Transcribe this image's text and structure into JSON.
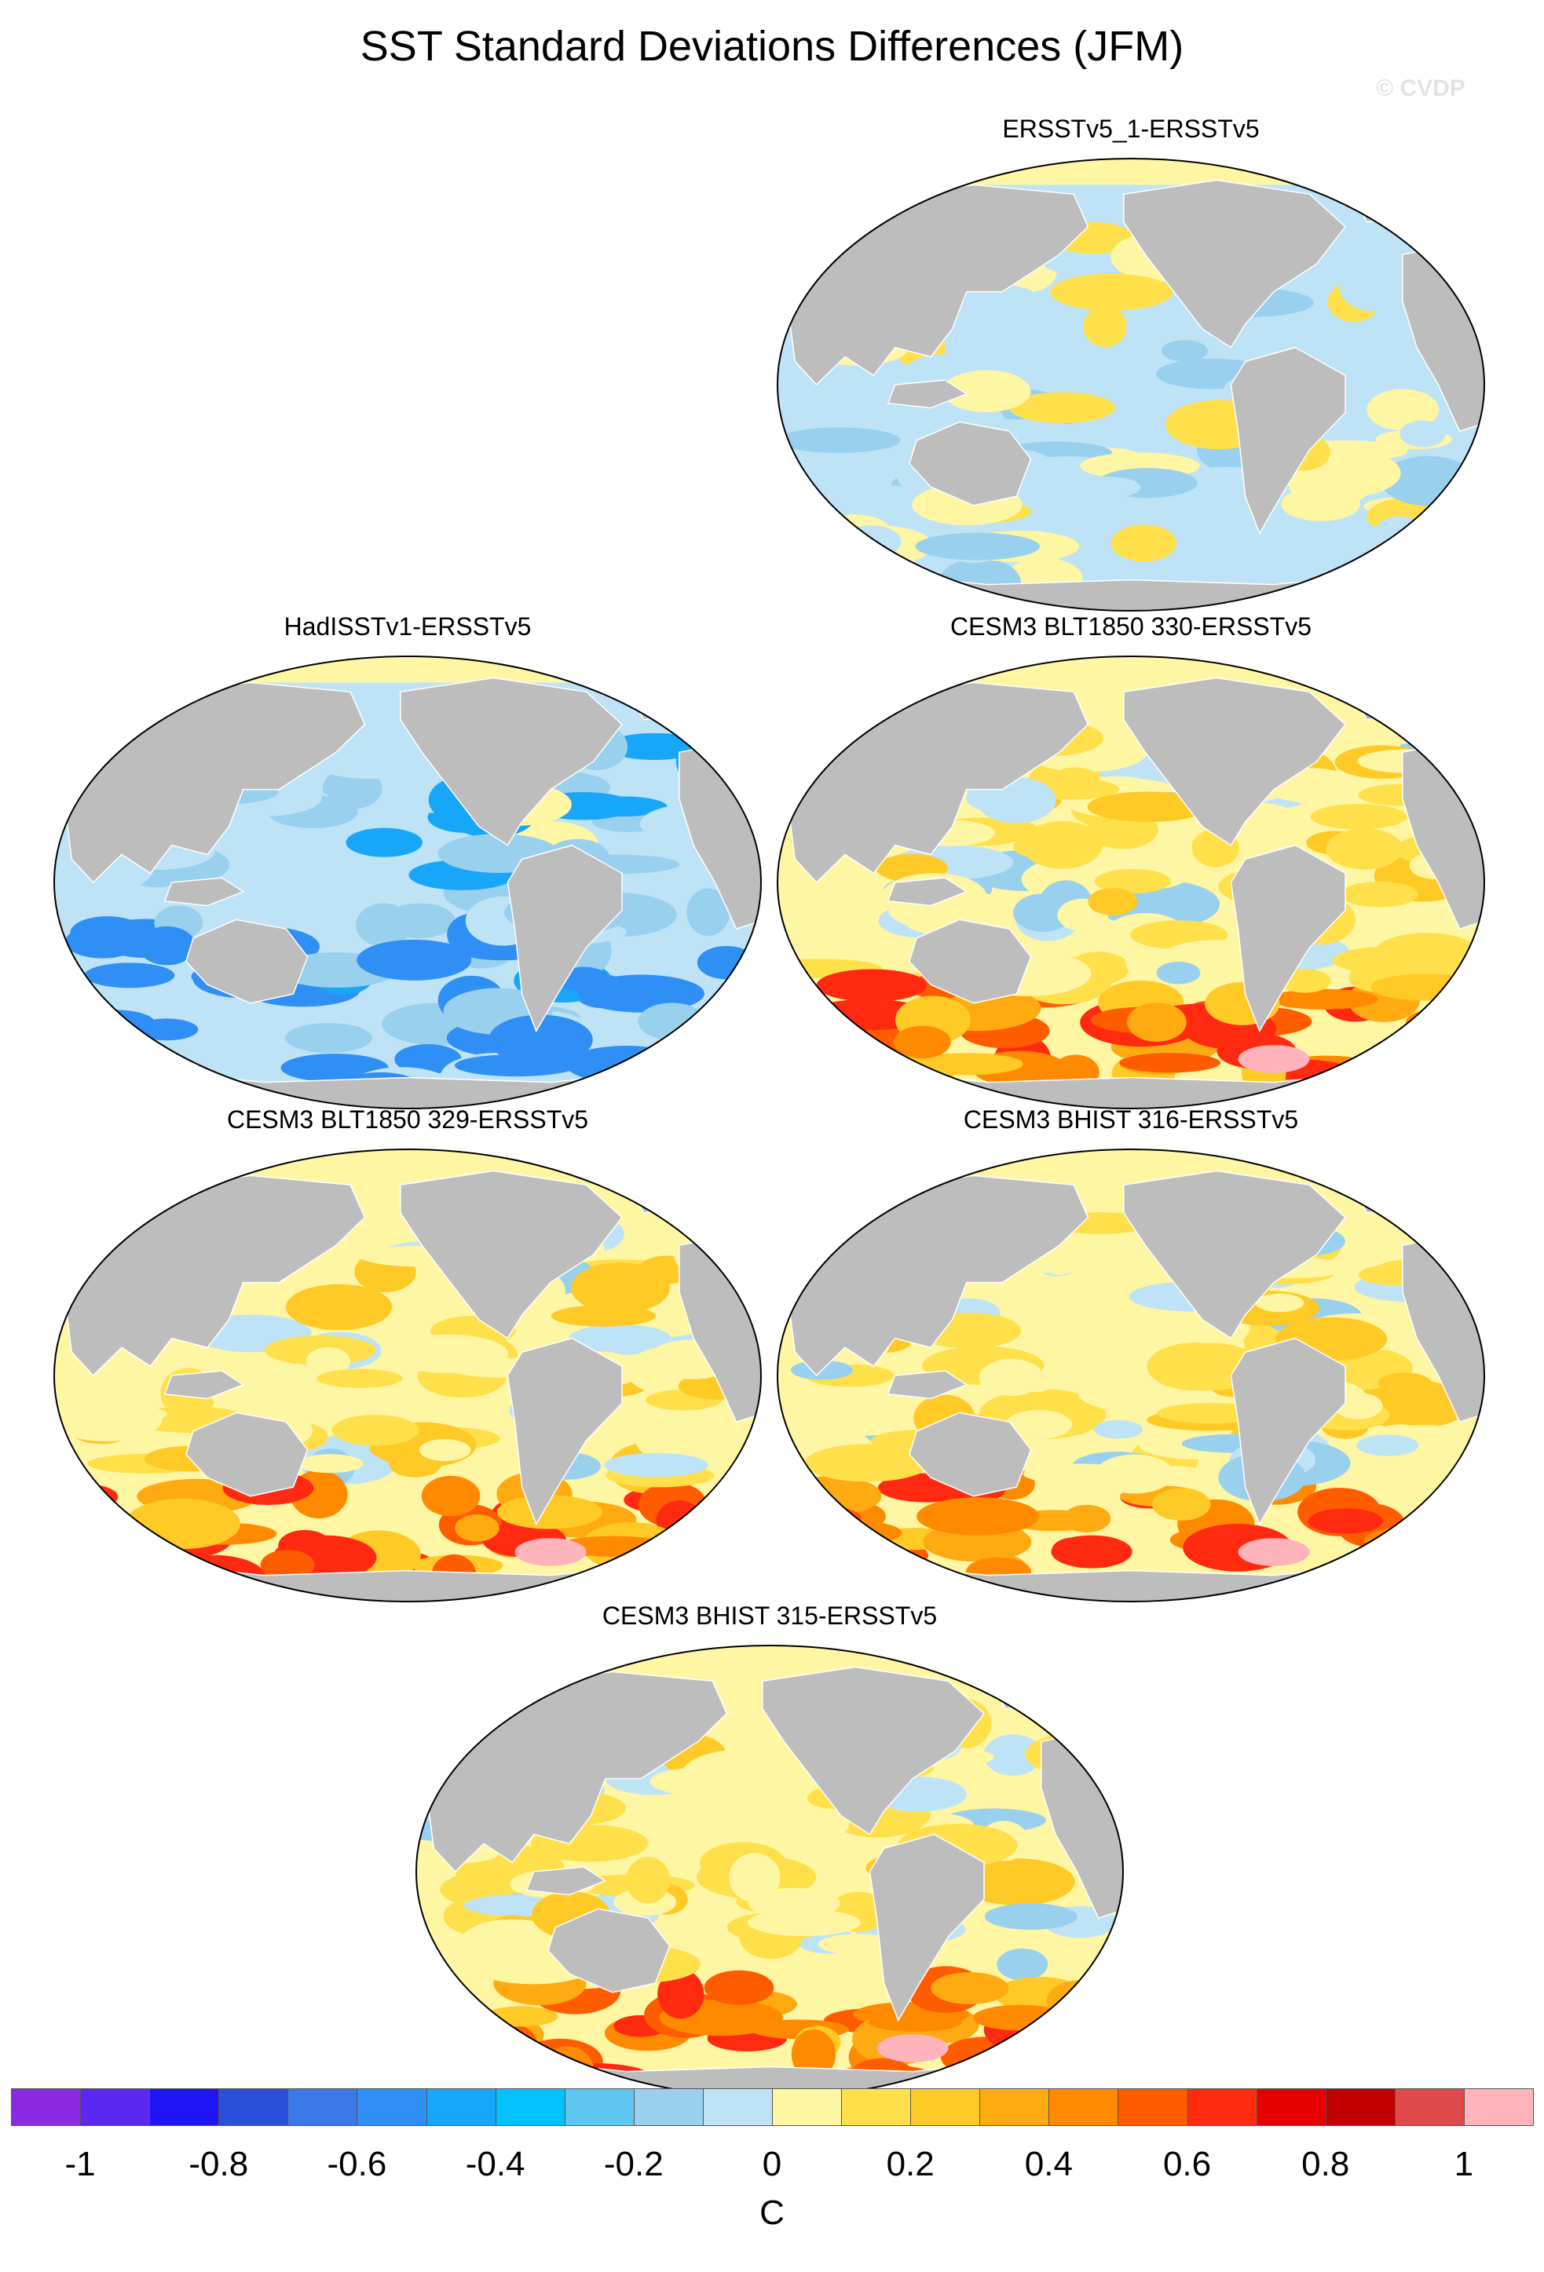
{
  "title": "SST Standard Deviations Differences (JFM)",
  "watermark": "© CVDP",
  "panels": [
    {
      "title": "ERSSTv5_1-ERSSTv5",
      "pattern": "mostly-negative"
    },
    {
      "title": "HadISSTv1-ERSSTv5",
      "pattern": "strongly-negative"
    },
    {
      "title": "CESM3 BLT1850 330-ERSSTv5",
      "pattern": "mostly-positive"
    },
    {
      "title": "CESM3 BLT1850 329-ERSSTv5",
      "pattern": "mostly-positive"
    },
    {
      "title": "CESM3 BHIST 316-ERSSTv5",
      "pattern": "mostly-positive"
    },
    {
      "title": "CESM3 BHIST 315-ERSSTv5",
      "pattern": "mostly-positive"
    }
  ],
  "colorbar": {
    "unit": "C",
    "tick_labels": [
      "-1",
      "-0.8",
      "-0.6",
      "-0.4",
      "-0.2",
      "0",
      "0.2",
      "0.4",
      "0.6",
      "0.8",
      "1"
    ],
    "colors": [
      "#8a2be2",
      "#5a28f0",
      "#1e14f5",
      "#2a4fd8",
      "#3b78e8",
      "#2f8ff5",
      "#18a6f8",
      "#00c2ff",
      "#5fc6f2",
      "#98d0ee",
      "#bfe3f6",
      "#fff6a4",
      "#ffe04a",
      "#ffc926",
      "#ffaa10",
      "#ff8a00",
      "#ff5c00",
      "#ff2a10",
      "#e60000",
      "#c20000",
      "#de4a4a",
      "#ffb4bc"
    ]
  },
  "map_colors": {
    "land": "#bdbdbd",
    "sea_ice": "#fff6a4",
    "outline": "#000000"
  }
}
